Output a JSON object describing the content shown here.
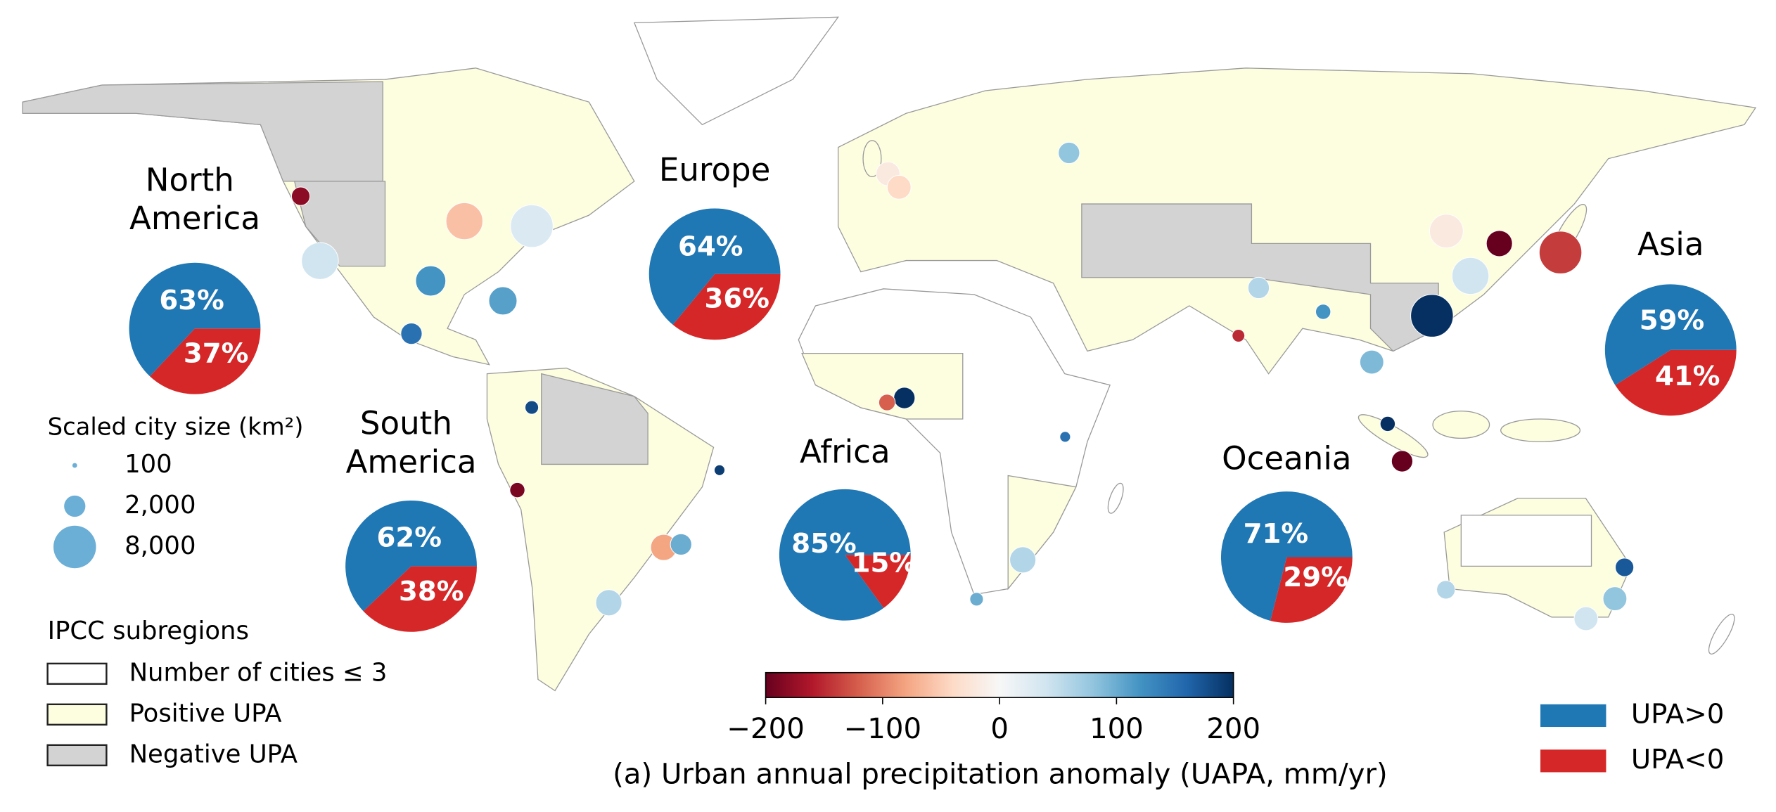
{
  "chart_data": {
    "type": "map",
    "pies": {
      "categories": [
        "North America",
        "Europe",
        "South America",
        "Africa",
        "Oceania",
        "Asia"
      ],
      "series": [
        {
          "name": "UPA>0",
          "color": "#1f77b4",
          "values": [
            63,
            64,
            62,
            85,
            71,
            59
          ],
          "value_labels": [
            "63%",
            "64%",
            "62%",
            "85%",
            "71%",
            "59%"
          ]
        },
        {
          "name": "UPA<0",
          "color": "#d62728",
          "values": [
            37,
            36,
            38,
            15,
            29,
            41
          ],
          "value_labels": [
            "37%",
            "36%",
            "38%",
            "15%",
            "29%",
            "41%"
          ]
        }
      ]
    },
    "cities": {
      "lon": [
        -122,
        -118,
        -95,
        -80,
        -74,
        -88,
        -99,
        -74,
        -77,
        -46.6,
        -43,
        -58,
        -35,
        0,
        2.3,
        37.6,
        3.4,
        -0.2,
        28,
        18.4,
        36.8,
        77,
        72.8,
        90.4,
        100.5,
        103.8,
        106.8,
        113,
        121,
        116,
        127,
        139.7,
        151,
        145,
        153,
        115.9
      ],
      "lat": [
        47,
        34,
        30,
        26,
        41,
        42,
        19.4,
        4.6,
        -12,
        -23.5,
        -22.9,
        -34.6,
        -8,
        51.5,
        48.8,
        55.7,
        6.5,
        5.6,
        -26,
        -33.9,
        -1.3,
        28.6,
        19,
        23.8,
        13.7,
        1.3,
        -6.2,
        23,
        31,
        40,
        37.5,
        35.7,
        -33.8,
        -37.8,
        -27.5,
        -32
      ],
      "uapa": [
        -180,
        40,
        120,
        110,
        30,
        -60,
        150,
        180,
        -190,
        -80,
        100,
        60,
        190,
        -20,
        -40,
        80,
        200,
        -120,
        60,
        100,
        150,
        60,
        -150,
        120,
        90,
        200,
        -200,
        200,
        40,
        -20,
        -200,
        -140,
        80,
        40,
        170,
        60
      ],
      "size_km2": [
        1500,
        6000,
        4000,
        3500,
        8000,
        6000,
        2000,
        800,
        1000,
        3000,
        2000,
        3000,
        500,
        2500,
        2500,
        2000,
        2000,
        1200,
        3000,
        800,
        500,
        2000,
        700,
        1000,
        2500,
        1000,
        2000,
        8000,
        6000,
        5000,
        3000,
        8000,
        2500,
        2500,
        1500,
        1500
      ]
    },
    "size_legend": {
      "title": "Scaled city size (km²)",
      "values": [
        100,
        {
          "value": 2000,
          "label": "2,000"
        },
        {
          "value": 8000,
          "label": "8,000"
        }
      ],
      "color": "#6baed6"
    },
    "region_legend": {
      "title": "IPCC subregions",
      "items": [
        {
          "label": "Number of cities ≤ 3",
          "color": "#ffffff"
        },
        {
          "label": "Positive UPA",
          "color": "#fdfde0"
        },
        {
          "label": "Negative UPA",
          "color": "#d3d3d3"
        }
      ]
    },
    "colorbar": {
      "label": "(a) Urban annual precipitation anomaly (UAPA, mm/yr)",
      "range": [
        -200,
        200
      ],
      "ticks": [
        {
          "value": -200,
          "label": "−200"
        },
        {
          "value": -100,
          "label": "−100"
        },
        0,
        100,
        200
      ],
      "colormap": [
        "#67001f",
        "#b2182b",
        "#d6604d",
        "#f4a582",
        "#fddbc7",
        "#f7f7f7",
        "#d1e5f0",
        "#92c5de",
        "#4393c3",
        "#2166ac",
        "#053061"
      ]
    }
  }
}
